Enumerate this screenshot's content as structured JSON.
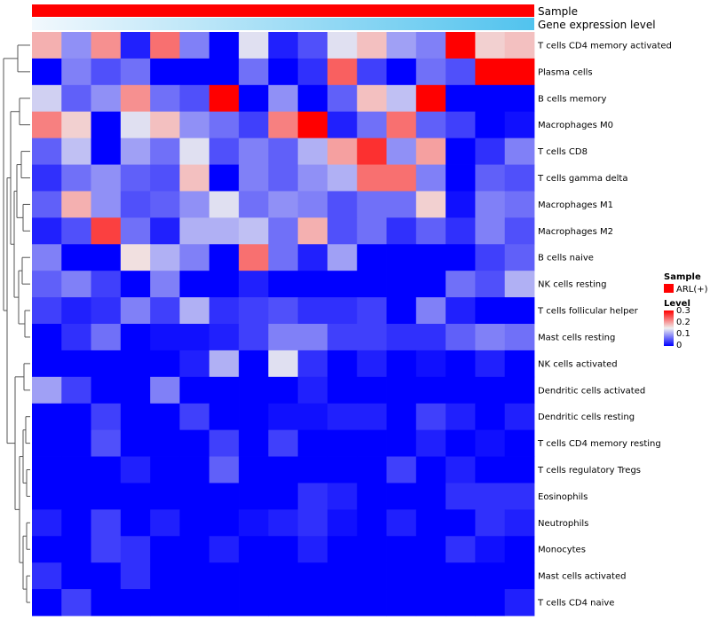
{
  "chart_data": {
    "type": "heatmap",
    "title": "",
    "annotation_tracks": [
      {
        "name": "Sample",
        "color": "#ff0000"
      },
      {
        "name": "Gene expression level",
        "gradient_from": "#f2f8fd",
        "gradient_to": "#51c3ee"
      }
    ],
    "rows": [
      "T cells CD4 memory activated",
      "Plasma cells",
      "B cells memory",
      "Macrophages M0",
      "T cells CD8",
      "T cells gamma delta",
      "Macrophages M1",
      "Macrophages M2",
      "B cells naive",
      "NK cells resting",
      "T cells follicular helper",
      "Mast cells resting",
      "NK cells activated",
      "Dendritic cells activated",
      "Dendritic cells resting",
      "T cells CD4 memory resting",
      "T cells regulatory  Tregs",
      "Eosinophils",
      "Neutrophils",
      "Monocytes",
      "Mast cells activated",
      "T cells CD4 naive"
    ],
    "n_columns": 17,
    "values": [
      [
        0.19,
        0.09,
        0.21,
        0.02,
        0.23,
        0.08,
        0.0,
        0.14,
        0.02,
        0.05,
        0.14,
        0.18,
        0.1,
        0.08,
        0.3,
        0.17,
        0.18
      ],
      [
        0.0,
        0.08,
        0.05,
        0.07,
        0.0,
        0.0,
        0.0,
        0.07,
        0.0,
        0.03,
        0.24,
        0.04,
        0.0,
        0.07,
        0.05,
        0.3,
        0.3
      ],
      [
        0.13,
        0.06,
        0.09,
        0.21,
        0.07,
        0.05,
        0.3,
        0.0,
        0.09,
        0.0,
        0.06,
        0.18,
        0.12,
        0.3,
        0.0,
        0.0,
        0.0
      ],
      [
        0.22,
        0.17,
        0.0,
        0.14,
        0.18,
        0.09,
        0.07,
        0.04,
        0.22,
        0.3,
        0.02,
        0.07,
        0.23,
        0.06,
        0.04,
        0.0,
        0.01
      ],
      [
        0.06,
        0.12,
        0.0,
        0.1,
        0.07,
        0.14,
        0.05,
        0.08,
        0.06,
        0.11,
        0.2,
        0.27,
        0.09,
        0.2,
        0.0,
        0.03,
        0.08
      ],
      [
        0.03,
        0.07,
        0.09,
        0.06,
        0.05,
        0.18,
        0.0,
        0.08,
        0.06,
        0.09,
        0.11,
        0.23,
        0.23,
        0.08,
        0.0,
        0.06,
        0.05
      ],
      [
        0.06,
        0.19,
        0.09,
        0.05,
        0.06,
        0.09,
        0.14,
        0.07,
        0.09,
        0.08,
        0.05,
        0.07,
        0.07,
        0.17,
        0.01,
        0.08,
        0.07
      ],
      [
        0.02,
        0.05,
        0.26,
        0.07,
        0.02,
        0.11,
        0.11,
        0.12,
        0.07,
        0.19,
        0.05,
        0.07,
        0.03,
        0.06,
        0.03,
        0.08,
        0.05
      ],
      [
        0.08,
        0.0,
        0.0,
        0.16,
        0.11,
        0.08,
        0.0,
        0.23,
        0.07,
        0.02,
        0.1,
        0.0,
        0.0,
        0.0,
        0.0,
        0.04,
        0.06
      ],
      [
        0.06,
        0.08,
        0.04,
        0.0,
        0.08,
        0.0,
        0.0,
        0.02,
        0.0,
        0.0,
        0.0,
        0.0,
        0.0,
        0.0,
        0.07,
        0.05,
        0.11
      ],
      [
        0.04,
        0.02,
        0.03,
        0.08,
        0.04,
        0.11,
        0.03,
        0.04,
        0.05,
        0.03,
        0.03,
        0.04,
        0.0,
        0.08,
        0.02,
        0.0,
        0.0
      ],
      [
        0.0,
        0.03,
        0.07,
        0.0,
        0.01,
        0.01,
        0.02,
        0.04,
        0.08,
        0.08,
        0.04,
        0.04,
        0.03,
        0.03,
        0.06,
        0.08,
        0.07
      ],
      [
        0.0,
        0.0,
        0.0,
        0.0,
        0.0,
        0.02,
        0.11,
        0.0,
        0.14,
        0.03,
        0.0,
        0.02,
        0.0,
        0.01,
        0.0,
        0.02,
        0.0
      ],
      [
        0.1,
        0.04,
        0.0,
        0.0,
        0.08,
        0.0,
        0.0,
        0.0,
        0.0,
        0.02,
        0.0,
        0.0,
        0.0,
        0.0,
        0.0,
        0.0,
        0.0
      ],
      [
        0.0,
        0.0,
        0.04,
        0.0,
        0.0,
        0.04,
        0.0,
        0.0,
        0.01,
        0.01,
        0.02,
        0.02,
        0.0,
        0.04,
        0.02,
        0.0,
        0.02
      ],
      [
        0.0,
        0.0,
        0.05,
        0.0,
        0.0,
        0.0,
        0.04,
        0.0,
        0.04,
        0.0,
        0.0,
        0.0,
        0.0,
        0.02,
        0.0,
        0.01,
        0.0
      ],
      [
        0.0,
        0.0,
        0.0,
        0.02,
        0.0,
        0.0,
        0.06,
        0.0,
        0.0,
        0.0,
        0.0,
        0.0,
        0.04,
        0.0,
        0.02,
        0.0,
        0.0
      ],
      [
        0.0,
        0.0,
        0.0,
        0.0,
        0.0,
        0.0,
        0.0,
        0.0,
        0.0,
        0.03,
        0.02,
        0.0,
        0.0,
        0.0,
        0.03,
        0.03,
        0.03
      ],
      [
        0.02,
        0.0,
        0.04,
        0.0,
        0.02,
        0.0,
        0.0,
        0.01,
        0.02,
        0.03,
        0.01,
        0.0,
        0.02,
        0.0,
        0.0,
        0.03,
        0.02
      ],
      [
        0.0,
        0.0,
        0.04,
        0.03,
        0.0,
        0.0,
        0.02,
        0.0,
        0.0,
        0.02,
        0.0,
        0.0,
        0.0,
        0.0,
        0.03,
        0.01,
        0.0
      ],
      [
        0.03,
        0.0,
        0.0,
        0.03,
        0.0,
        0.0,
        0.0,
        0.0,
        0.0,
        0.0,
        0.0,
        0.0,
        0.0,
        0.0,
        0.0,
        0.0,
        0.0
      ],
      [
        0.0,
        0.04,
        0.0,
        0.0,
        0.0,
        0.0,
        0.0,
        0.0,
        0.0,
        0.0,
        0.0,
        0.0,
        0.0,
        0.0,
        0.0,
        0.0,
        0.02
      ]
    ],
    "color_scale": {
      "low": "#0000ff",
      "mid": "#f0f0f0",
      "high": "#ff0000",
      "min": 0,
      "mid_value": 0.15,
      "max": 0.3
    },
    "legend": {
      "sample_title": "Sample",
      "sample_entry": "ARL(+)",
      "sample_color": "#ff0000",
      "level_title": "Level",
      "level_ticks": [
        "0.3",
        "0.2",
        "0.1",
        "0"
      ],
      "placement": "right"
    },
    "dendrogram": "rows"
  }
}
